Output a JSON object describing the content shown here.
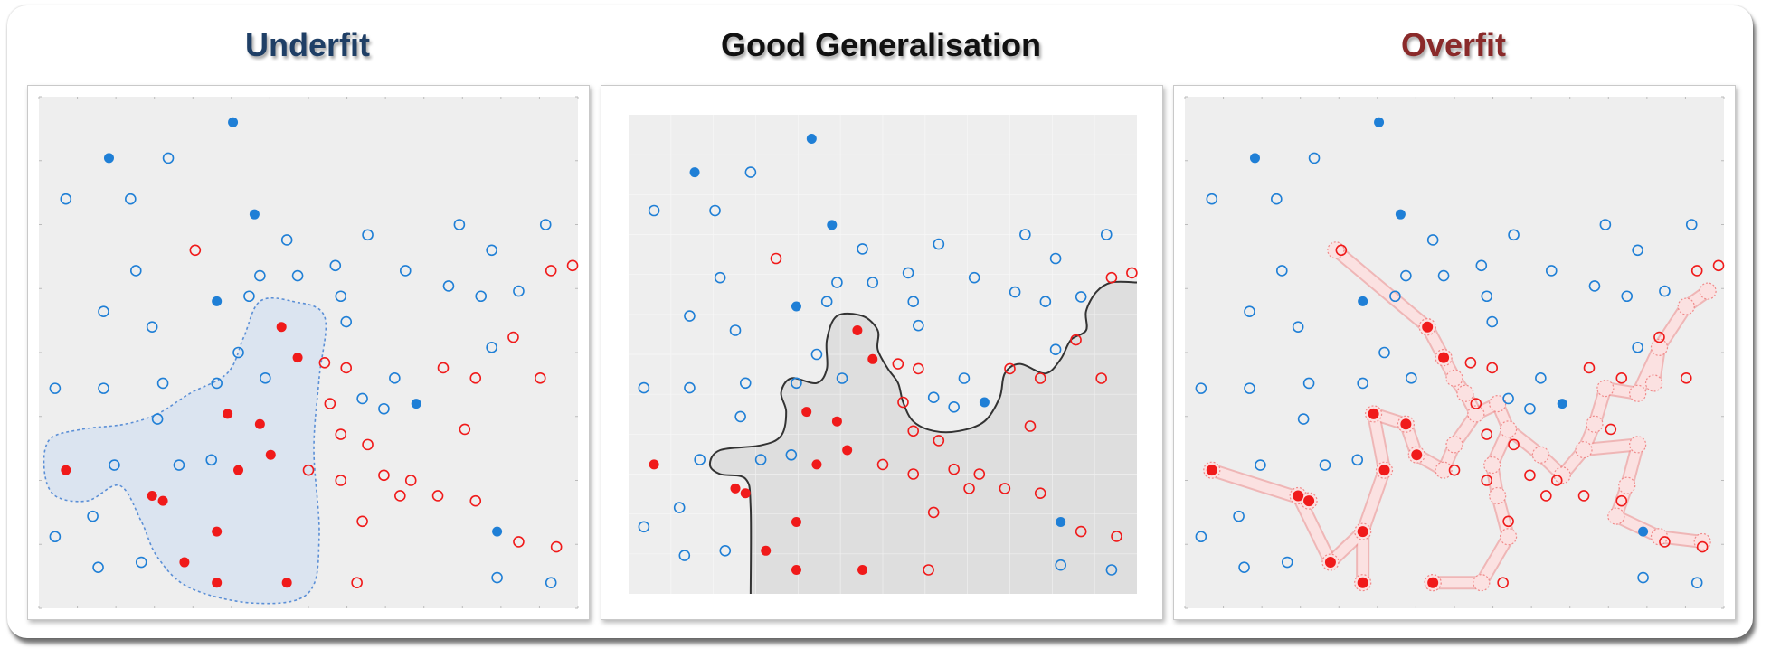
{
  "titles": {
    "underfit": "Underfit",
    "good": "Good Generalisation",
    "overfit": "Overfit"
  },
  "colors": {
    "blue": "#1f7fd6",
    "red": "#f01a1a",
    "underfit_title": "#1f3f66",
    "good_title": "#111111",
    "overfit_title": "#8a2a2a",
    "plot_background": "#eeeeee",
    "underfit_region": "#dbe4f0",
    "good_region": "#dedede"
  },
  "chart_data": {
    "type": "scatter",
    "xlim": [
      0,
      100
    ],
    "ylim": [
      0,
      100
    ],
    "series": [
      {
        "class": "blue",
        "style": "filled",
        "points": [
          [
            36,
            95
          ],
          [
            13,
            88
          ],
          [
            40,
            77
          ],
          [
            33,
            60
          ],
          [
            70,
            40
          ],
          [
            85,
            15
          ]
        ]
      },
      {
        "class": "blue",
        "style": "hollow",
        "points": [
          [
            24,
            88
          ],
          [
            5,
            80
          ],
          [
            17,
            80
          ],
          [
            46,
            72
          ],
          [
            61,
            73
          ],
          [
            78,
            75
          ],
          [
            84,
            70
          ],
          [
            94,
            75
          ],
          [
            18,
            66
          ],
          [
            41,
            65
          ],
          [
            48,
            65
          ],
          [
            55,
            67
          ],
          [
            68,
            66
          ],
          [
            76,
            63
          ],
          [
            82,
            61
          ],
          [
            89,
            62
          ],
          [
            12,
            58
          ],
          [
            21,
            55
          ],
          [
            39,
            61
          ],
          [
            56,
            61
          ],
          [
            57,
            56
          ],
          [
            37,
            50
          ],
          [
            84,
            51
          ],
          [
            3,
            43
          ],
          [
            12,
            43
          ],
          [
            23,
            44
          ],
          [
            33,
            44
          ],
          [
            42,
            45
          ],
          [
            66,
            45
          ],
          [
            60,
            41
          ],
          [
            64,
            39
          ],
          [
            22,
            37
          ],
          [
            14,
            28
          ],
          [
            26,
            28
          ],
          [
            32,
            29
          ],
          [
            10,
            18
          ],
          [
            3,
            14
          ],
          [
            11,
            8
          ],
          [
            19,
            9
          ],
          [
            85,
            6
          ],
          [
            95,
            5
          ]
        ]
      },
      {
        "class": "red",
        "style": "filled",
        "points": [
          [
            45,
            55
          ],
          [
            48,
            49
          ],
          [
            35,
            38
          ],
          [
            41,
            36
          ],
          [
            43,
            30
          ],
          [
            5,
            27
          ],
          [
            37,
            27
          ],
          [
            21,
            22
          ],
          [
            23,
            21
          ],
          [
            33,
            15
          ],
          [
            27,
            9
          ],
          [
            33,
            5
          ],
          [
            46,
            5
          ]
        ]
      },
      {
        "class": "red",
        "style": "hollow",
        "points": [
          [
            29,
            70
          ],
          [
            95,
            66
          ],
          [
            99,
            67
          ],
          [
            53,
            48
          ],
          [
            57,
            47
          ],
          [
            88,
            53
          ],
          [
            75,
            47
          ],
          [
            81,
            45
          ],
          [
            93,
            45
          ],
          [
            54,
            40
          ],
          [
            79,
            35
          ],
          [
            56,
            34
          ],
          [
            61,
            32
          ],
          [
            50,
            27
          ],
          [
            56,
            25
          ],
          [
            64,
            26
          ],
          [
            69,
            25
          ],
          [
            67,
            22
          ],
          [
            74,
            22
          ],
          [
            81,
            21
          ],
          [
            60,
            17
          ],
          [
            89,
            13
          ],
          [
            96,
            12
          ],
          [
            59,
            5
          ]
        ]
      }
    ]
  }
}
